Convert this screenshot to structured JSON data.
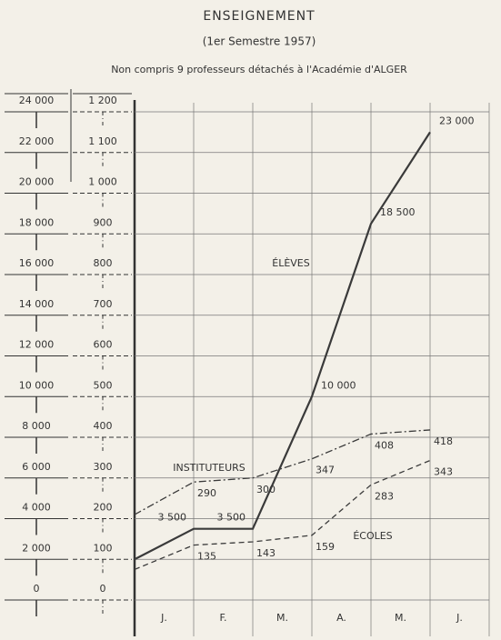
{
  "chart_data": {
    "type": "line",
    "title": "ENSEIGNEMENT",
    "subtitle": "(1er Semestre 1957)",
    "note": "Non compris 9 professeurs détachés à l'Académie d'ALGER",
    "categories": [
      "J.",
      "F.",
      "M.",
      "A.",
      "M.",
      "J."
    ],
    "ylim": [
      0,
      24000
    ],
    "yticks": [
      0,
      {
        "value": 2000,
        "label": "2 000"
      },
      {
        "value": 4000,
        "label": "4 000"
      },
      {
        "value": 6000,
        "label": "6 000"
      },
      {
        "value": 8000,
        "label": "8 000"
      },
      {
        "value": 10000,
        "label": "10 000"
      },
      {
        "value": 12000,
        "label": "12 000"
      },
      {
        "value": 14000,
        "label": "14 000"
      },
      {
        "value": 16000,
        "label": "16 000"
      },
      {
        "value": 18000,
        "label": "18 000"
      },
      {
        "value": 20000,
        "label": "20 000"
      },
      {
        "value": 22000,
        "label": "22 000"
      },
      {
        "value": 24000,
        "label": "24 000"
      }
    ],
    "y2lim": [
      0,
      1200
    ],
    "y2ticks": [
      0,
      100,
      200,
      300,
      400,
      500,
      600,
      700,
      800,
      900,
      {
        "value": 1000,
        "label": "1 000"
      },
      {
        "value": 1100,
        "label": "1 100"
      },
      {
        "value": 1200,
        "label": "1 200"
      }
    ],
    "grid": true,
    "series": [
      {
        "name": "ÉLÈVES",
        "color": "#3a3a3a",
        "style": "solid",
        "values": [
          2000,
          3500,
          3500,
          10000,
          18500,
          23000
        ],
        "value_labels": [
          null,
          "3 500",
          "3 500",
          "10 000",
          "18 500",
          "23 000"
        ]
      },
      {
        "name": "INSTITUTEURS",
        "color": "#3a3a3a",
        "style": "dashdot",
        "axis": "y2",
        "values": [
          210,
          290,
          300,
          347,
          408,
          418
        ]
      },
      {
        "name": "ÉCOLES",
        "color": "#3a3a3a",
        "style": "dashed",
        "axis": "y2",
        "values": [
          75,
          135,
          143,
          159,
          283,
          343
        ]
      }
    ]
  }
}
